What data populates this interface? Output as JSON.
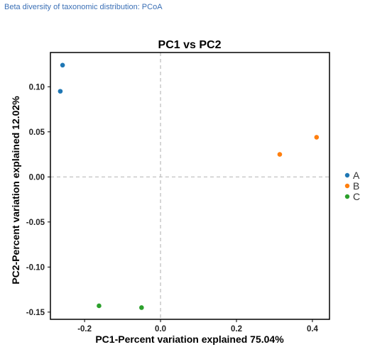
{
  "header": {
    "caption": "Beta diversity of taxonomic distribution: PCoA"
  },
  "chart_data": {
    "type": "scatter",
    "title": "PC1 vs PC2",
    "xlabel": "PC1-Percent variation explained 75.04%",
    "ylabel": "PC2-Percent variation explained 12.02%",
    "xlim": [
      -0.29,
      0.445
    ],
    "ylim": [
      -0.158,
      0.138
    ],
    "xticks": [
      -0.2,
      0.0,
      0.2,
      0.4
    ],
    "xtick_labels": [
      "-0.2",
      "0.0",
      "0.2",
      "0.4"
    ],
    "yticks": [
      -0.15,
      -0.1,
      -0.05,
      0.0,
      0.05,
      0.1
    ],
    "ytick_labels": [
      "-0.15",
      "-0.10",
      "-0.05",
      "0.00",
      "0.05",
      "0.10"
    ],
    "reference_lines": {
      "x": 0,
      "y": 0
    },
    "grid": false,
    "legend_position": "right",
    "series": [
      {
        "name": "A",
        "color": "#1f77b4",
        "points": [
          [
            -0.258,
            0.124
          ],
          [
            -0.264,
            0.095
          ]
        ]
      },
      {
        "name": "B",
        "color": "#ff7f0e",
        "points": [
          [
            0.314,
            0.025
          ],
          [
            0.411,
            0.044
          ]
        ]
      },
      {
        "name": "C",
        "color": "#2ca02c",
        "points": [
          [
            -0.162,
            -0.143
          ],
          [
            -0.05,
            -0.145
          ]
        ]
      }
    ]
  }
}
